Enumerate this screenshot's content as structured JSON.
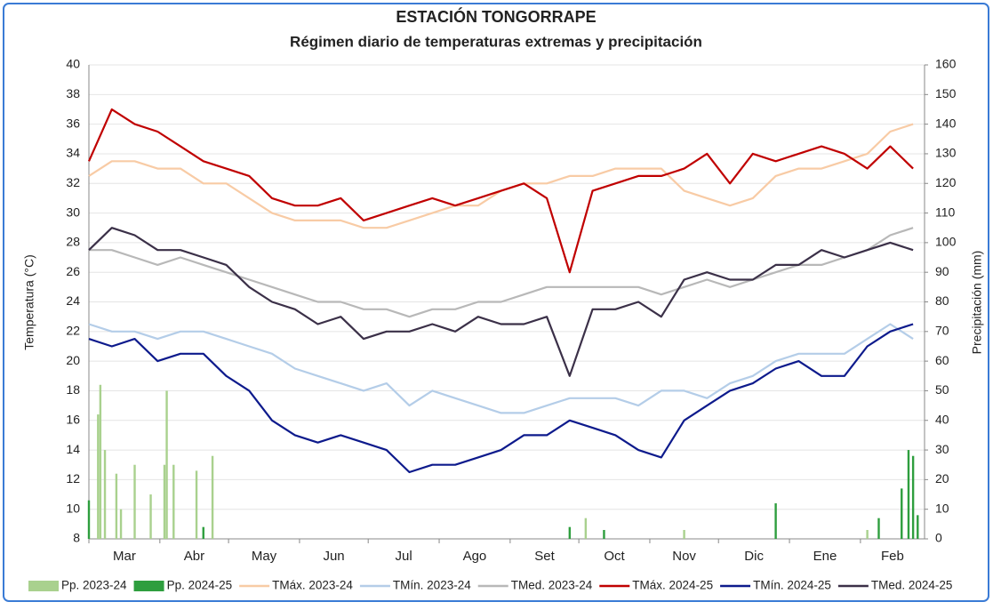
{
  "chart_data": {
    "type": "line",
    "title": "ESTACIÓN TONGORRAPE",
    "subtitle": "Régimen diario de temperaturas extremas y precipitación",
    "y_label": "Temperatura (°C)",
    "y2_label": "Precipitación (mm)",
    "grid": true,
    "legend": "bottom",
    "xlim": [
      0,
      365
    ],
    "xticks": [
      {
        "value": 0,
        "label": "Mar"
      },
      {
        "value": 31,
        "label": "Abr"
      },
      {
        "value": 61,
        "label": "May"
      },
      {
        "value": 92,
        "label": "Jun"
      },
      {
        "value": 122,
        "label": "Jul"
      },
      {
        "value": 153,
        "label": "Ago"
      },
      {
        "value": 184,
        "label": "Set"
      },
      {
        "value": 214,
        "label": "Oct"
      },
      {
        "value": 245,
        "label": "Nov"
      },
      {
        "value": 275,
        "label": "Dic"
      },
      {
        "value": 306,
        "label": "Ene"
      },
      {
        "value": 337,
        "label": "Feb"
      }
    ],
    "ylim": [
      8,
      40
    ],
    "yticks": [
      8,
      10,
      12,
      14,
      16,
      18,
      20,
      22,
      24,
      26,
      28,
      30,
      32,
      34,
      36,
      38,
      40
    ],
    "y2lim": [
      0,
      160
    ],
    "y2ticks": [
      0,
      10,
      20,
      30,
      40,
      50,
      60,
      70,
      80,
      90,
      100,
      110,
      120,
      130,
      140,
      150,
      160
    ],
    "x": [
      0,
      10,
      20,
      30,
      40,
      50,
      60,
      70,
      80,
      90,
      100,
      110,
      120,
      130,
      140,
      150,
      160,
      170,
      180,
      190,
      200,
      210,
      220,
      230,
      240,
      250,
      260,
      270,
      280,
      290,
      300,
      310,
      320,
      330,
      340,
      350,
      360
    ],
    "series": [
      {
        "name": "Pp. 2023-24",
        "color": "#a9d18e",
        "type": "bar",
        "axis": "y2",
        "x": [
          4,
          5,
          7,
          12,
          14,
          20,
          27,
          33,
          34,
          37,
          47,
          54,
          217,
          260,
          340
        ],
        "values": [
          42,
          52,
          30,
          22,
          10,
          25,
          15,
          25,
          50,
          25,
          23,
          28,
          7,
          3,
          3
        ]
      },
      {
        "name": "Pp. 2024-25",
        "color": "#2e9e3e",
        "type": "bar",
        "axis": "y2",
        "x": [
          0,
          50,
          210,
          225,
          300,
          345,
          355,
          358,
          360,
          362
        ],
        "values": [
          13,
          4,
          4,
          3,
          12,
          7,
          17,
          30,
          28,
          8
        ]
      },
      {
        "name": "TMáx. 2023-24",
        "color": "#f8cba5",
        "type": "line",
        "values": [
          32.5,
          33.5,
          33.5,
          33,
          33,
          32,
          32,
          31,
          30,
          29.5,
          29.5,
          29.5,
          29,
          29,
          29.5,
          30,
          30.5,
          30.5,
          31.5,
          32,
          32,
          32.5,
          32.5,
          33,
          33,
          33,
          31.5,
          31,
          30.5,
          31,
          32.5,
          33,
          33,
          33.5,
          34,
          35.5,
          36
        ]
      },
      {
        "name": "TMín. 2023-24",
        "color": "#b4cde8",
        "type": "line",
        "values": [
          22.5,
          22,
          22,
          21.5,
          22,
          22,
          21.5,
          21,
          20.5,
          19.5,
          19,
          18.5,
          18,
          18.5,
          17,
          18,
          17.5,
          17,
          16.5,
          16.5,
          17,
          17.5,
          17.5,
          17.5,
          17,
          18,
          18,
          17.5,
          18.5,
          19,
          20,
          20.5,
          20.5,
          20.5,
          21.5,
          22.5,
          21.5
        ]
      },
      {
        "name": "TMed. 2023-24",
        "color": "#b8b8b8",
        "type": "line",
        "values": [
          27.5,
          27.5,
          27,
          26.5,
          27,
          26.5,
          26,
          25.5,
          25,
          24.5,
          24,
          24,
          23.5,
          23.5,
          23,
          23.5,
          23.5,
          24,
          24,
          24.5,
          25,
          25,
          25,
          25,
          25,
          24.5,
          25,
          25.5,
          25,
          25.5,
          26,
          26.5,
          26.5,
          27,
          27.5,
          28.5,
          29
        ]
      },
      {
        "name": "TMáx. 2024-25",
        "color": "#c00000",
        "type": "line",
        "values": [
          33.5,
          37,
          36,
          35.5,
          34.5,
          33.5,
          33,
          32.5,
          31,
          30.5,
          30.5,
          31,
          29.5,
          30,
          30.5,
          31,
          30.5,
          31,
          31.5,
          32,
          31,
          26,
          31.5,
          32,
          32.5,
          32.5,
          33,
          34,
          32,
          34,
          33.5,
          34,
          34.5,
          34,
          33,
          34.5,
          33
        ]
      },
      {
        "name": "TMín. 2024-25",
        "color": "#0d1a8c",
        "type": "line",
        "values": [
          21.5,
          21,
          21.5,
          20,
          20.5,
          20.5,
          19,
          18,
          16,
          15,
          14.5,
          15,
          14.5,
          14,
          12.5,
          13,
          13,
          13.5,
          14,
          15,
          15,
          16,
          15.5,
          15,
          14,
          13.5,
          16,
          17,
          18,
          18.5,
          19.5,
          20,
          19,
          19,
          21,
          22,
          22.5
        ]
      },
      {
        "name": "TMed. 2024-25",
        "color": "#3b3048",
        "type": "line",
        "values": [
          27.5,
          29,
          28.5,
          27.5,
          27.5,
          27,
          26.5,
          25,
          24,
          23.5,
          22.5,
          23,
          21.5,
          22,
          22,
          22.5,
          22,
          23,
          22.5,
          22.5,
          23,
          19,
          23.5,
          23.5,
          24,
          23,
          25.5,
          26,
          25.5,
          25.5,
          26.5,
          26.5,
          27.5,
          27,
          27.5,
          28,
          27.5
        ]
      }
    ]
  }
}
